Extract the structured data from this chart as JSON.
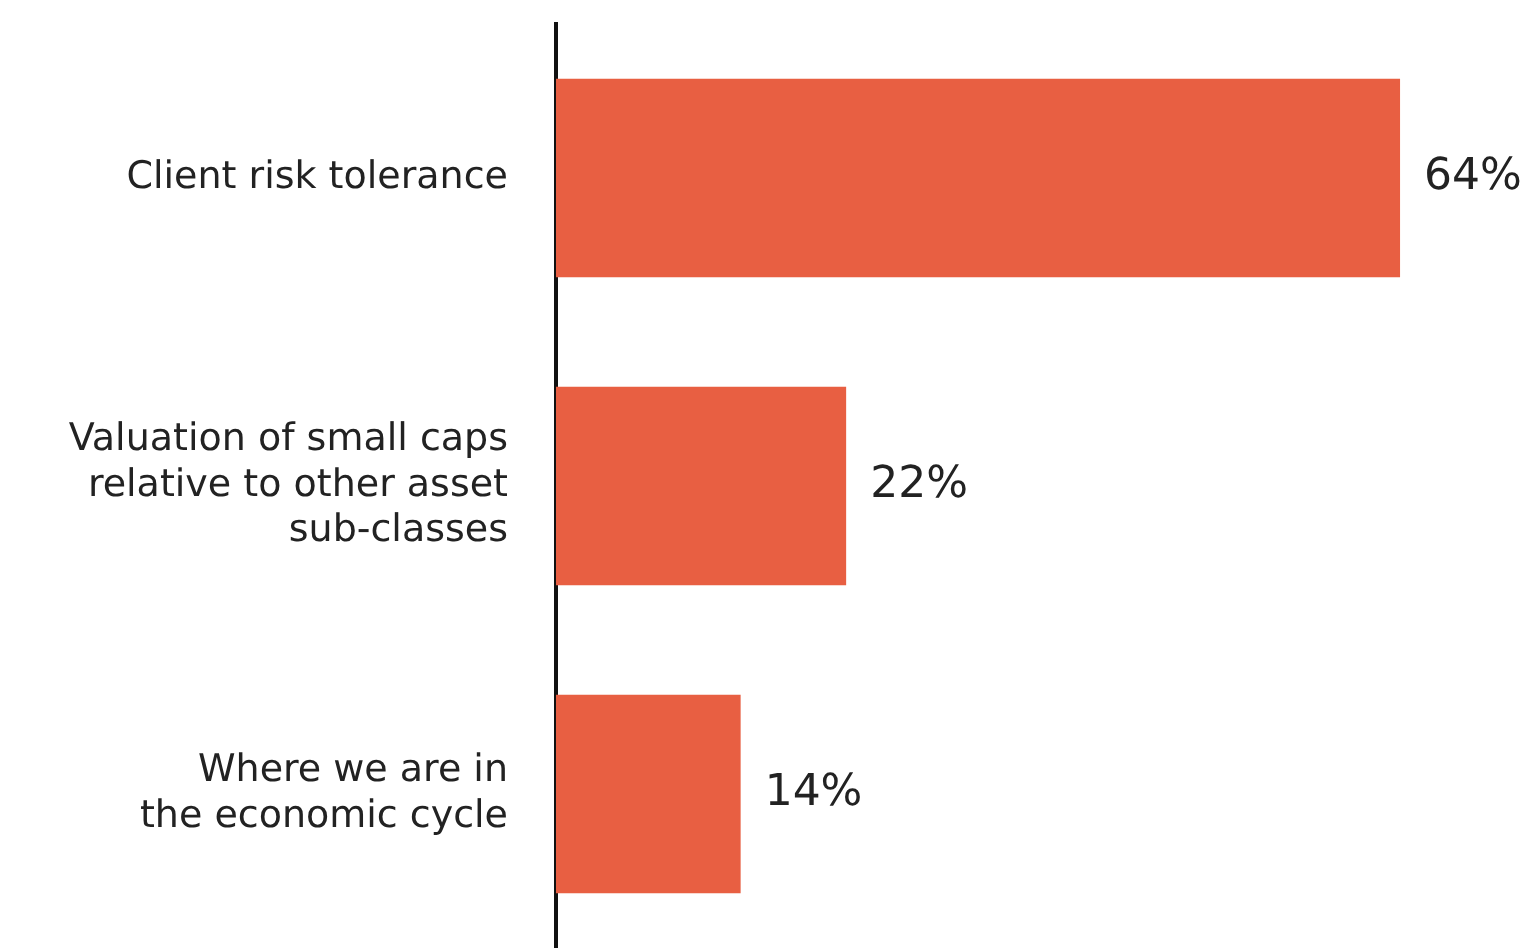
{
  "chart_data": {
    "type": "bar",
    "orientation": "horizontal",
    "categories": [
      "Client risk tolerance",
      "Valuation of small caps\nrelative to other asset\nsub-classes",
      "Where we are in\nthe economic cycle"
    ],
    "values": [
      64,
      22,
      14
    ],
    "color": "#e85f42",
    "value_labels": [
      "64%",
      "22%",
      "14%"
    ],
    "legend": false,
    "tick_labels": "y"
  }
}
